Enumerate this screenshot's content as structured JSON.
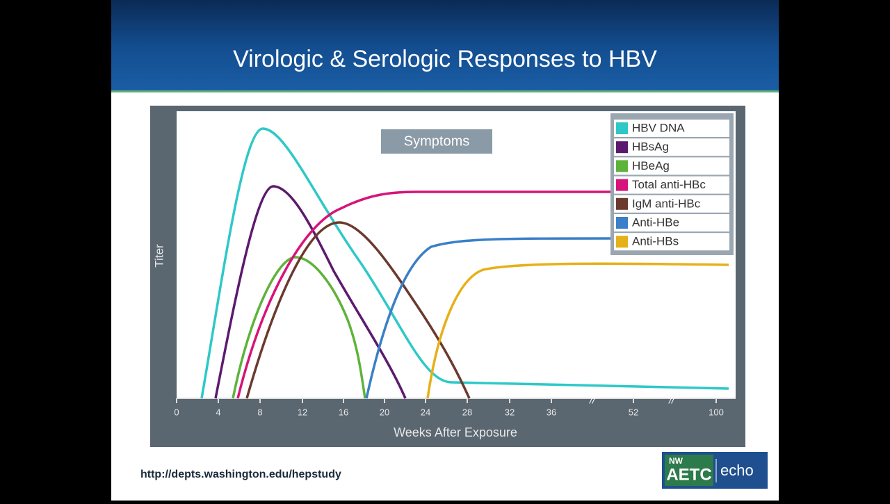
{
  "slide": {
    "title": "Virologic & Serologic Responses to HBV",
    "url": "http://depts.washington.edu/hepstudy"
  },
  "figure": {
    "y_label": "Titer",
    "x_label": "Weeks After Exposure",
    "annotation": "Symptoms",
    "x_ticks": [
      "0",
      "4",
      "8",
      "12",
      "16",
      "20",
      "24",
      "28",
      "32",
      "36",
      "52",
      "100"
    ],
    "legend": [
      {
        "name": "HBV DNA",
        "color": "#2ec8c8"
      },
      {
        "name": "HBsAg",
        "color": "#5c1a6e"
      },
      {
        "name": "HBeAg",
        "color": "#5db33a"
      },
      {
        "name": "Total anti-HBc",
        "color": "#d6147a"
      },
      {
        "name": "IgM anti-HBc",
        "color": "#6b3a2e"
      },
      {
        "name": "Anti-HBe",
        "color": "#3a7fc8"
      },
      {
        "name": "Anti-HBs",
        "color": "#e6b017"
      }
    ]
  },
  "logo": {
    "left_top": "NW",
    "left_bottom": "AETC",
    "right": "echo"
  }
}
